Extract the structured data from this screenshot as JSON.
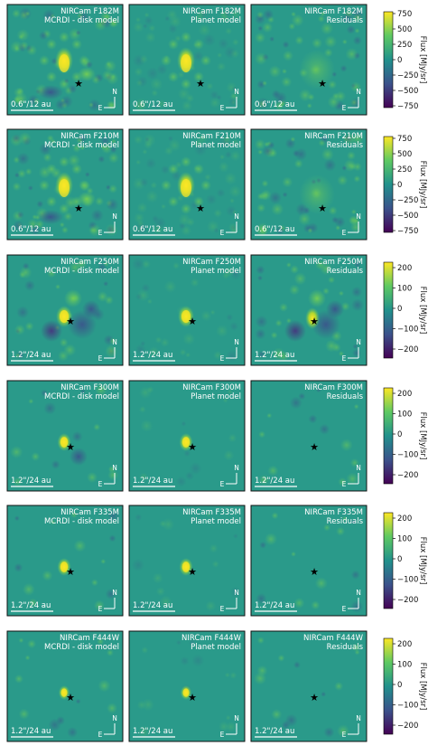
{
  "figure": {
    "colormap": [
      "#440154",
      "#3b528b",
      "#21918c",
      "#5ec962",
      "#fde725"
    ],
    "background_color": "#2a9a8a",
    "compass": {
      "north": "N",
      "east": "E"
    },
    "colorbar_label": "Flux [MJy/sr]",
    "rows": [
      {
        "filter": "NIRCam F182M",
        "scale_label": "0.6\"/12 au",
        "panels": [
          "MCRDI - disk model",
          "Planet model",
          "Residuals"
        ],
        "colorbar_ticks": [
          "750",
          "500",
          "250",
          "0",
          "−250",
          "−500",
          "−750"
        ]
      },
      {
        "filter": "NIRCam F210M",
        "scale_label": "0.6\"/12 au",
        "panels": [
          "MCRDI - disk model",
          "Planet model",
          "Residuals"
        ],
        "colorbar_ticks": [
          "750",
          "500",
          "250",
          "0",
          "−250",
          "−500",
          "−750"
        ]
      },
      {
        "filter": "NIRCam F250M",
        "scale_label": "1.2\"/24 au",
        "panels": [
          "MCRDI - disk model",
          "Planet model",
          "Residuals"
        ],
        "colorbar_ticks": [
          "200",
          "100",
          "0",
          "−100",
          "−200"
        ]
      },
      {
        "filter": "NIRCam F300M",
        "scale_label": "1.2\"/24 au",
        "panels": [
          "MCRDI - disk model",
          "Planet model",
          "Residuals"
        ],
        "colorbar_ticks": [
          "200",
          "100",
          "0",
          "−100",
          "−200"
        ]
      },
      {
        "filter": "NIRCam F335M",
        "scale_label": "1.2\"/24 au",
        "panels": [
          "MCRDI - disk model",
          "Planet model",
          "Residuals"
        ],
        "colorbar_ticks": [
          "200",
          "100",
          "0",
          "−100",
          "−200"
        ]
      },
      {
        "filter": "NIRCam F444W",
        "scale_label": "1.2\"/24 au",
        "panels": [
          "MCRDI - disk model",
          "Planet model",
          "Residuals"
        ],
        "colorbar_ticks": [
          "200",
          "100",
          "0",
          "−100",
          "−200"
        ]
      }
    ]
  }
}
